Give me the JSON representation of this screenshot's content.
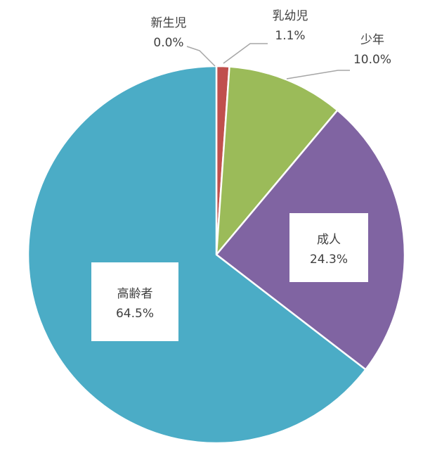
{
  "chart_data": {
    "type": "pie",
    "title": "",
    "categories": [
      "新生児",
      "乳幼児",
      "少年",
      "成人",
      "高齢者"
    ],
    "values": [
      0.0,
      1.1,
      10.0,
      24.3,
      64.5
    ],
    "value_labels": [
      "0.0%",
      "1.1%",
      "10.0%",
      "24.3%",
      "64.5%"
    ],
    "colors": [
      "#a6a6a6",
      "#c0504d",
      "#9bbb59",
      "#8064a2",
      "#4bacc6"
    ],
    "start_angle_deg": 0,
    "direction": "clockwise",
    "legend": "none"
  }
}
